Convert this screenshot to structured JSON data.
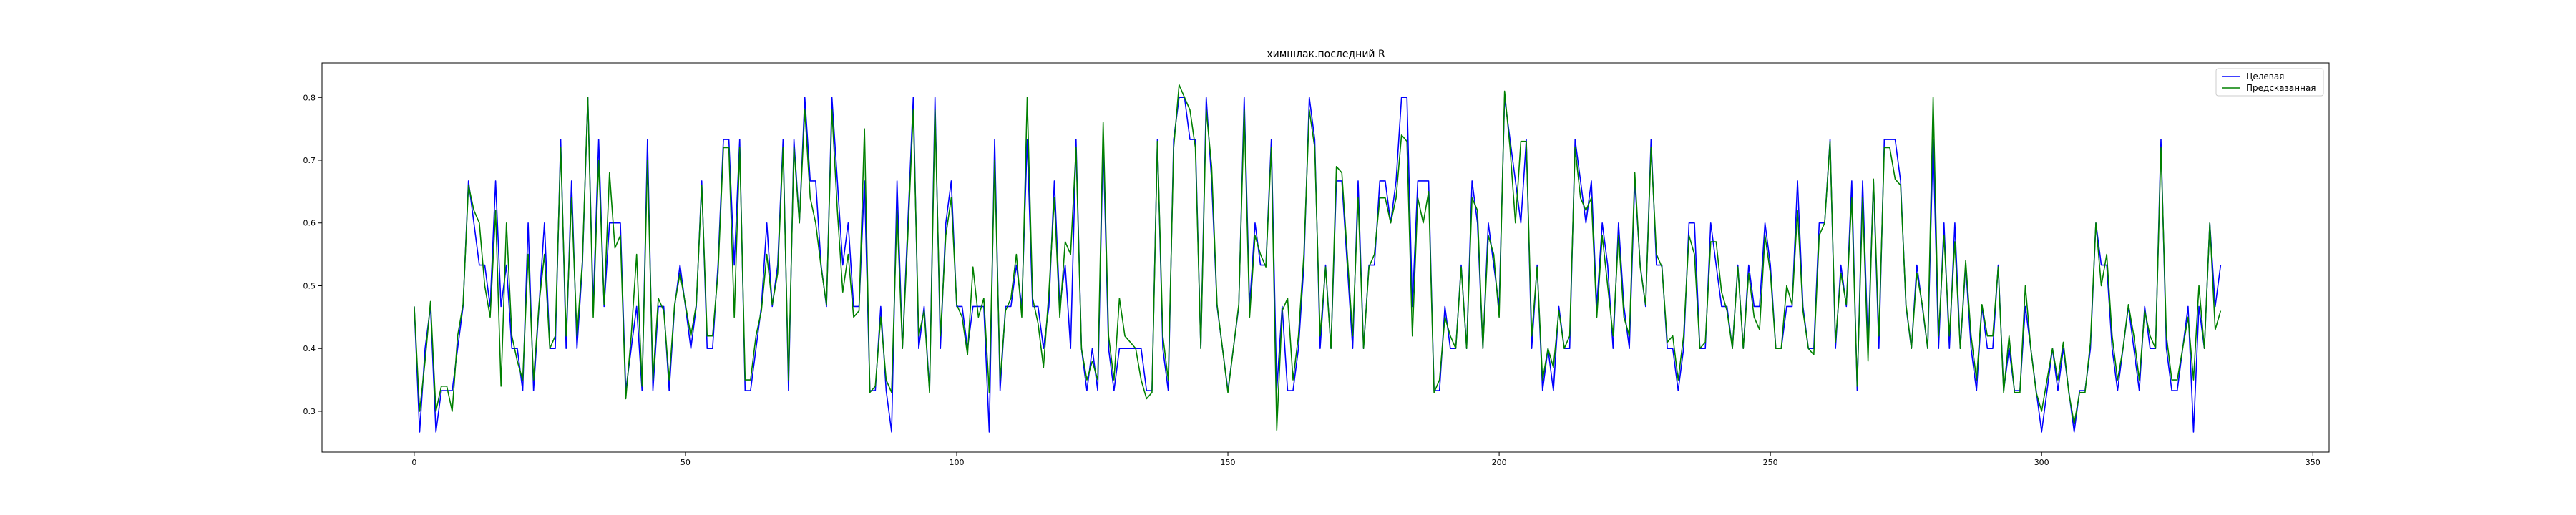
{
  "chart_data": {
    "type": "line",
    "title": "химшлак.последний R",
    "xlabel": "",
    "ylabel": "",
    "xlim": [
      -17,
      353
    ],
    "ylim": [
      0.235,
      0.855
    ],
    "xticks": [
      0,
      50,
      100,
      150,
      200,
      250,
      300,
      350
    ],
    "yticks": [
      0.3,
      0.4,
      0.5,
      0.6,
      0.7,
      0.8
    ],
    "grid": false,
    "legend_position": "top-right",
    "series": [
      {
        "name": "Целевая",
        "color": "#0000ff",
        "values": [
          0.467,
          0.267,
          0.4,
          0.467,
          0.267,
          0.333,
          0.333,
          0.333,
          0.4,
          0.467,
          0.667,
          0.6,
          0.533,
          0.533,
          0.467,
          0.667,
          0.467,
          0.533,
          0.4,
          0.4,
          0.333,
          0.6,
          0.333,
          0.467,
          0.6,
          0.4,
          0.4,
          0.733,
          0.4,
          0.667,
          0.4,
          0.533,
          0.8,
          0.467,
          0.733,
          0.467,
          0.6,
          0.6,
          0.6,
          0.333,
          0.4,
          0.467,
          0.333,
          0.733,
          0.333,
          0.467,
          0.467,
          0.333,
          0.467,
          0.533,
          0.467,
          0.4,
          0.467,
          0.667,
          0.4,
          0.4,
          0.533,
          0.733,
          0.733,
          0.533,
          0.733,
          0.333,
          0.333,
          0.4,
          0.467,
          0.6,
          0.467,
          0.533,
          0.733,
          0.333,
          0.733,
          0.6,
          0.8,
          0.667,
          0.667,
          0.533,
          0.467,
          0.8,
          0.667,
          0.533,
          0.6,
          0.467,
          0.467,
          0.667,
          0.333,
          0.333,
          0.467,
          0.333,
          0.267,
          0.667,
          0.4,
          0.6,
          0.8,
          0.4,
          0.467,
          0.333,
          0.8,
          0.4,
          0.6,
          0.667,
          0.467,
          0.467,
          0.4,
          0.467,
          0.467,
          0.467,
          0.267,
          0.733,
          0.333,
          0.467,
          0.467,
          0.533,
          0.467,
          0.733,
          0.467,
          0.467,
          0.4,
          0.467,
          0.667,
          0.467,
          0.533,
          0.4,
          0.733,
          0.4,
          0.333,
          0.4,
          0.333,
          0.733,
          0.4,
          0.333,
          0.4,
          0.4,
          0.4,
          0.4,
          0.4,
          0.333,
          0.333,
          0.733,
          0.4,
          0.333,
          0.733,
          0.8,
          0.8,
          0.733,
          0.733,
          0.4,
          0.8,
          0.667,
          0.467,
          0.4,
          0.333,
          0.4,
          0.467,
          0.8,
          0.467,
          0.6,
          0.533,
          0.533,
          0.733,
          0.333,
          0.467,
          0.333,
          0.333,
          0.4,
          0.533,
          0.8,
          0.733,
          0.4,
          0.533,
          0.4,
          0.667,
          0.667,
          0.533,
          0.4,
          0.667,
          0.4,
          0.533,
          0.533,
          0.667,
          0.667,
          0.6,
          0.667,
          0.8,
          0.8,
          0.467,
          0.667,
          0.667,
          0.667,
          0.333,
          0.333,
          0.467,
          0.4,
          0.4,
          0.533,
          0.4,
          0.667,
          0.6,
          0.4,
          0.6,
          0.533,
          0.467,
          0.8,
          0.733,
          0.667,
          0.6,
          0.733,
          0.4,
          0.533,
          0.333,
          0.4,
          0.333,
          0.467,
          0.4,
          0.4,
          0.733,
          0.667,
          0.6,
          0.667,
          0.467,
          0.6,
          0.533,
          0.4,
          0.6,
          0.467,
          0.4,
          0.667,
          0.533,
          0.467,
          0.733,
          0.533,
          0.533,
          0.4,
          0.4,
          0.333,
          0.4,
          0.6,
          0.6,
          0.4,
          0.4,
          0.6,
          0.533,
          0.467,
          0.467,
          0.4,
          0.533,
          0.4,
          0.533,
          0.467,
          0.467,
          0.6,
          0.533,
          0.4,
          0.4,
          0.467,
          0.467,
          0.667,
          0.467,
          0.4,
          0.4,
          0.6,
          0.6,
          0.733,
          0.4,
          0.533,
          0.467,
          0.667,
          0.333,
          0.667,
          0.4,
          0.667,
          0.4,
          0.733,
          0.733,
          0.733,
          0.667,
          0.467,
          0.4,
          0.533,
          0.467,
          0.4,
          0.733,
          0.4,
          0.6,
          0.4,
          0.6,
          0.4,
          0.533,
          0.4,
          0.333,
          0.467,
          0.4,
          0.4,
          0.533,
          0.333,
          0.4,
          0.333,
          0.333,
          0.467,
          0.4,
          0.333,
          0.267,
          0.333,
          0.4,
          0.333,
          0.4,
          0.333,
          0.267,
          0.333,
          0.333,
          0.4,
          0.6,
          0.533,
          0.533,
          0.4,
          0.333,
          0.4,
          0.467,
          0.4,
          0.333,
          0.467,
          0.4,
          0.4,
          0.733,
          0.4,
          0.333,
          0.333,
          0.4,
          0.467,
          0.267,
          0.467,
          0.4,
          0.6,
          0.467,
          0.533
        ]
      },
      {
        "name": "Предсказанная",
        "color": "#008000",
        "values": [
          0.467,
          0.3,
          0.38,
          0.475,
          0.3,
          0.34,
          0.34,
          0.3,
          0.42,
          0.47,
          0.66,
          0.62,
          0.6,
          0.5,
          0.45,
          0.62,
          0.34,
          0.6,
          0.42,
          0.38,
          0.35,
          0.55,
          0.35,
          0.47,
          0.55,
          0.4,
          0.42,
          0.72,
          0.42,
          0.64,
          0.42,
          0.54,
          0.8,
          0.45,
          0.7,
          0.47,
          0.68,
          0.56,
          0.58,
          0.32,
          0.42,
          0.55,
          0.34,
          0.7,
          0.35,
          0.48,
          0.46,
          0.35,
          0.47,
          0.52,
          0.47,
          0.42,
          0.47,
          0.66,
          0.42,
          0.42,
          0.52,
          0.72,
          0.72,
          0.45,
          0.72,
          0.35,
          0.35,
          0.42,
          0.46,
          0.55,
          0.47,
          0.52,
          0.72,
          0.35,
          0.72,
          0.6,
          0.78,
          0.64,
          0.6,
          0.53,
          0.47,
          0.78,
          0.62,
          0.49,
          0.55,
          0.45,
          0.46,
          0.75,
          0.33,
          0.34,
          0.45,
          0.35,
          0.33,
          0.62,
          0.4,
          0.58,
          0.78,
          0.42,
          0.46,
          0.33,
          0.78,
          0.42,
          0.58,
          0.64,
          0.47,
          0.45,
          0.39,
          0.53,
          0.45,
          0.48,
          0.33,
          0.7,
          0.35,
          0.46,
          0.48,
          0.55,
          0.45,
          0.8,
          0.48,
          0.44,
          0.37,
          0.49,
          0.64,
          0.45,
          0.57,
          0.55,
          0.72,
          0.4,
          0.35,
          0.38,
          0.35,
          0.76,
          0.42,
          0.35,
          0.48,
          0.42,
          0.41,
          0.4,
          0.35,
          0.32,
          0.33,
          0.73,
          0.42,
          0.35,
          0.72,
          0.82,
          0.8,
          0.78,
          0.72,
          0.4,
          0.78,
          0.69,
          0.47,
          0.4,
          0.33,
          0.4,
          0.47,
          0.78,
          0.45,
          0.58,
          0.55,
          0.53,
          0.72,
          0.27,
          0.46,
          0.48,
          0.35,
          0.42,
          0.55,
          0.78,
          0.72,
          0.42,
          0.53,
          0.4,
          0.69,
          0.68,
          0.55,
          0.42,
          0.64,
          0.4,
          0.53,
          0.55,
          0.64,
          0.64,
          0.6,
          0.64,
          0.74,
          0.73,
          0.42,
          0.64,
          0.6,
          0.65,
          0.33,
          0.35,
          0.45,
          0.42,
          0.4,
          0.53,
          0.4,
          0.64,
          0.62,
          0.4,
          0.58,
          0.55,
          0.45,
          0.81,
          0.72,
          0.6,
          0.73,
          0.73,
          0.42,
          0.53,
          0.35,
          0.4,
          0.37,
          0.46,
          0.4,
          0.42,
          0.72,
          0.64,
          0.62,
          0.64,
          0.45,
          0.58,
          0.5,
          0.42,
          0.58,
          0.45,
          0.42,
          0.68,
          0.53,
          0.47,
          0.72,
          0.55,
          0.53,
          0.41,
          0.42,
          0.35,
          0.42,
          0.58,
          0.55,
          0.4,
          0.41,
          0.57,
          0.57,
          0.49,
          0.46,
          0.4,
          0.53,
          0.4,
          0.52,
          0.45,
          0.43,
          0.58,
          0.52,
          0.4,
          0.4,
          0.5,
          0.47,
          0.62,
          0.46,
          0.4,
          0.39,
          0.58,
          0.6,
          0.73,
          0.41,
          0.52,
          0.47,
          0.64,
          0.34,
          0.64,
          0.38,
          0.67,
          0.42,
          0.72,
          0.72,
          0.67,
          0.66,
          0.47,
          0.4,
          0.52,
          0.47,
          0.4,
          0.8,
          0.42,
          0.58,
          0.42,
          0.57,
          0.4,
          0.54,
          0.42,
          0.35,
          0.47,
          0.42,
          0.42,
          0.53,
          0.33,
          0.42,
          0.33,
          0.33,
          0.5,
          0.4,
          0.33,
          0.3,
          0.35,
          0.4,
          0.35,
          0.41,
          0.33,
          0.28,
          0.33,
          0.33,
          0.41,
          0.6,
          0.5,
          0.55,
          0.42,
          0.35,
          0.4,
          0.47,
          0.42,
          0.35,
          0.46,
          0.42,
          0.4,
          0.72,
          0.42,
          0.35,
          0.35,
          0.4,
          0.45,
          0.35,
          0.5,
          0.4,
          0.6,
          0.43,
          0.46
        ]
      }
    ]
  }
}
